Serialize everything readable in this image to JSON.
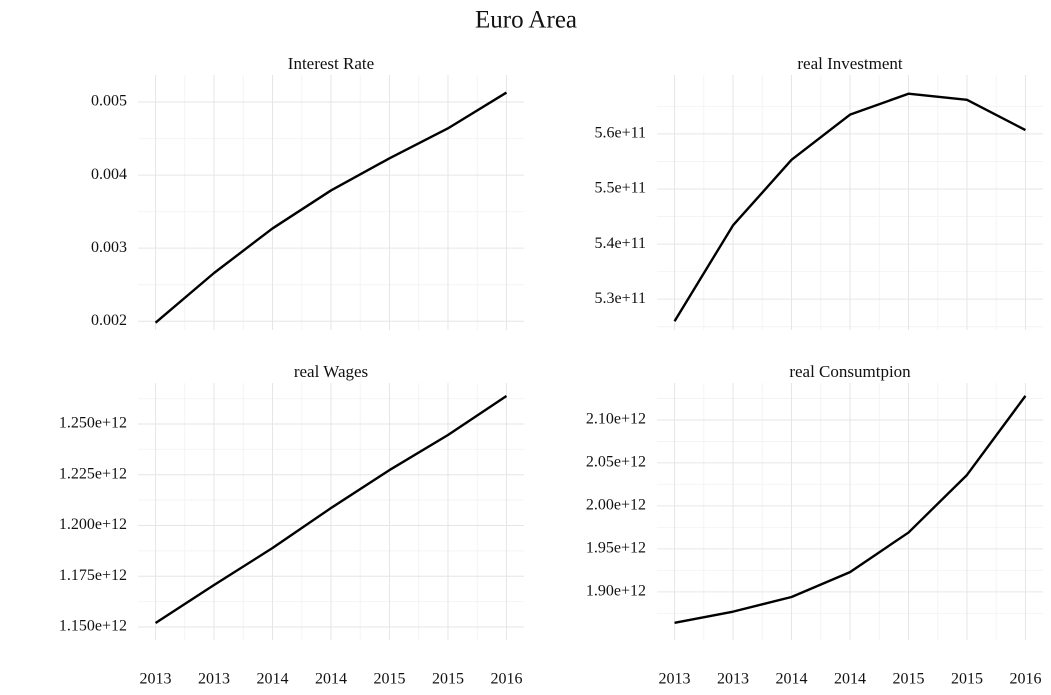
{
  "title": "Euro Area",
  "chart_data": [
    {
      "type": "line",
      "title": "Interest Rate",
      "color": "#000000",
      "x": [
        2013,
        2013.5,
        2014,
        2014.5,
        2015,
        2015.5,
        2016
      ],
      "values": [
        0.00198,
        0.00266,
        0.00327,
        0.00379,
        0.00423,
        0.00464,
        0.00513
      ],
      "xlim": [
        2012.85,
        2016.15
      ],
      "ylim": [
        0.00188,
        0.00537
      ],
      "yticks": [
        0.002,
        0.003,
        0.004,
        0.005
      ],
      "grid": true
    },
    {
      "type": "line",
      "title": "real Investment",
      "color": "#000000",
      "x": [
        2013,
        2013.5,
        2014,
        2014.5,
        2015,
        2015.5,
        2016
      ],
      "values": [
        526000000000,
        543400000000,
        555300000000,
        563500000000,
        567300000000,
        566200000000,
        560700000000
      ],
      "xlim": [
        2012.85,
        2016.15
      ],
      "ylim": [
        524400000000,
        570700000000
      ],
      "yticks": [
        {
          "value": 530000000000,
          "label": "5.3e+11"
        },
        {
          "value": 540000000000,
          "label": "5.4e+11"
        },
        {
          "value": 550000000000,
          "label": "5.5e+11"
        },
        {
          "value": 560000000000,
          "label": "5.6e+11"
        }
      ],
      "grid": true
    },
    {
      "type": "line",
      "title": "real Wages",
      "color": "#000000",
      "x": [
        2013,
        2013.5,
        2014,
        2014.5,
        2015,
        2015.5,
        2016
      ],
      "values": [
        1152000000000,
        1170700000000,
        1188900000000,
        1208600000000,
        1227300000000,
        1244600000000,
        1263800000000
      ],
      "xlim": [
        2012.85,
        2016.15
      ],
      "ylim": [
        1143600000000,
        1270200000000
      ],
      "xticks": [
        2013,
        {
          "value": 2013.5,
          "label": "2013"
        },
        2014,
        {
          "value": 2014.5,
          "label": "2014"
        },
        2015,
        {
          "value": 2015.5,
          "label": "2015"
        },
        2016
      ],
      "yticks": [
        {
          "value": 1150000000000,
          "label": "1.150e+12"
        },
        {
          "value": 1175000000000,
          "label": "1.175e+12"
        },
        {
          "value": 1200000000000,
          "label": "1.200e+12"
        },
        {
          "value": 1225000000000,
          "label": "1.225e+12"
        },
        {
          "value": 1250000000000,
          "label": "1.250e+12"
        }
      ],
      "grid": true
    },
    {
      "type": "line",
      "title": "real Consumtpion",
      "color": "#000000",
      "x": [
        2013,
        2013.5,
        2014,
        2014.5,
        2015,
        2015.5,
        2016
      ],
      "values": [
        1864000000000,
        1877000000000,
        1894000000000,
        1923000000000,
        1969000000000,
        2036000000000,
        2128000000000
      ],
      "xlim": [
        2012.85,
        2016.15
      ],
      "ylim": [
        1844000000000,
        2143000000000
      ],
      "xticks": [
        2013,
        {
          "value": 2013.5,
          "label": "2013"
        },
        2014,
        {
          "value": 2014.5,
          "label": "2014"
        },
        2015,
        {
          "value": 2015.5,
          "label": "2015"
        },
        2016
      ],
      "yticks": [
        {
          "value": 1900000000000,
          "label": "1.90e+12"
        },
        {
          "value": 1950000000000,
          "label": "1.95e+12"
        },
        {
          "value": 2000000000000,
          "label": "2.00e+12"
        },
        {
          "value": 2050000000000,
          "label": "2.05e+12"
        },
        {
          "value": 2100000000000,
          "label": "2.10e+12"
        }
      ],
      "grid": true
    }
  ]
}
